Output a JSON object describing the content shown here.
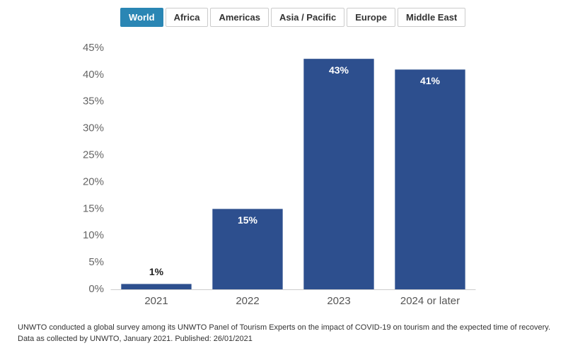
{
  "tabs": [
    "World",
    "Africa",
    "Americas",
    "Asia / Pacific",
    "Europe",
    "Middle East"
  ],
  "active_tab": "World",
  "chart_data": {
    "type": "bar",
    "categories": [
      "2021",
      "2022",
      "2023",
      "2024 or later"
    ],
    "values": [
      1,
      15,
      43,
      41
    ],
    "value_labels": [
      "1%",
      "15%",
      "43%",
      "41%"
    ],
    "color": "#2d4f8e",
    "ylim": [
      0,
      45
    ],
    "yticks": [
      {
        "value": 0,
        "label": "0%"
      },
      {
        "value": 5,
        "label": "5%"
      },
      {
        "value": 10,
        "label": "10%"
      },
      {
        "value": 15,
        "label": "15%"
      },
      {
        "value": 20,
        "label": "20%"
      },
      {
        "value": 25,
        "label": "25%"
      },
      {
        "value": 30,
        "label": "30%"
      },
      {
        "value": 35,
        "label": "35%"
      },
      {
        "value": 40,
        "label": "40%"
      },
      {
        "value": 45,
        "label": "45%"
      }
    ],
    "grid": false
  },
  "footnote": [
    "UNWTO conducted a global survey among its UNWTO Panel of Tourism Experts on the impact of COVID-19 on tourism and the expected time of recovery.",
    "Data as collected by UNWTO, January 2021. Published: 26/01/2021"
  ]
}
